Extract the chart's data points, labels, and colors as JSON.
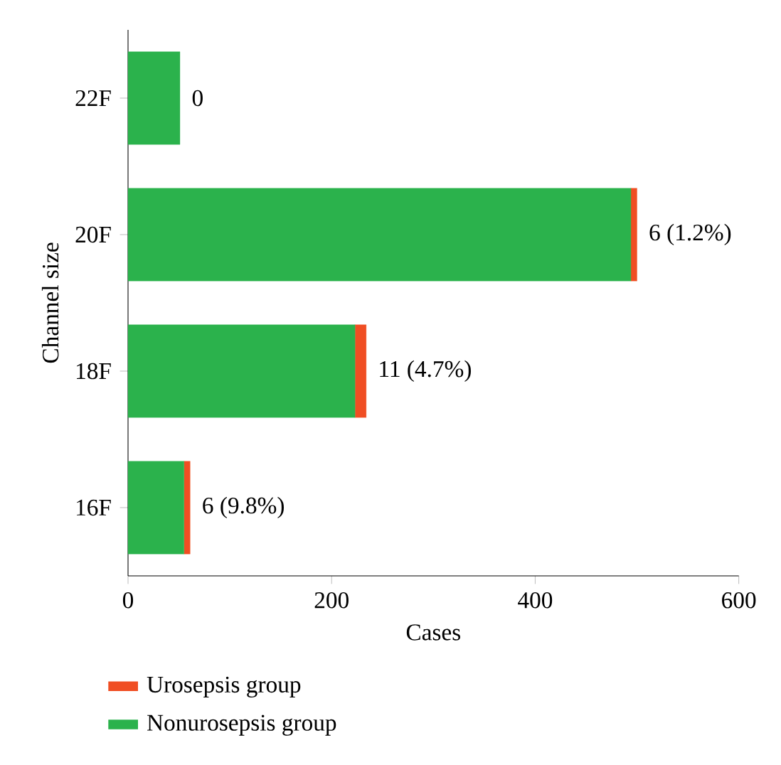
{
  "chart_data": {
    "type": "bar",
    "orientation": "horizontal",
    "stacked": true,
    "ylabel": "Channel size",
    "xlabel": "Cases",
    "categories": [
      "22F",
      "20F",
      "18F",
      "16F"
    ],
    "series": [
      {
        "name": "Nonurosepsis group",
        "color": "#2bb24c",
        "values": [
          51,
          494,
          223,
          55
        ]
      },
      {
        "name": "Urosepsis group",
        "color": "#f04e23",
        "values": [
          0,
          6,
          11,
          6
        ],
        "value_labels": [
          "0",
          "6 (1.2%)",
          "11 (4.7%)",
          "6 (9.8%)"
        ]
      }
    ],
    "xlim": [
      0,
      600
    ],
    "xticks": [
      0,
      200,
      400,
      600
    ],
    "legend": "bottom",
    "grid": false
  }
}
